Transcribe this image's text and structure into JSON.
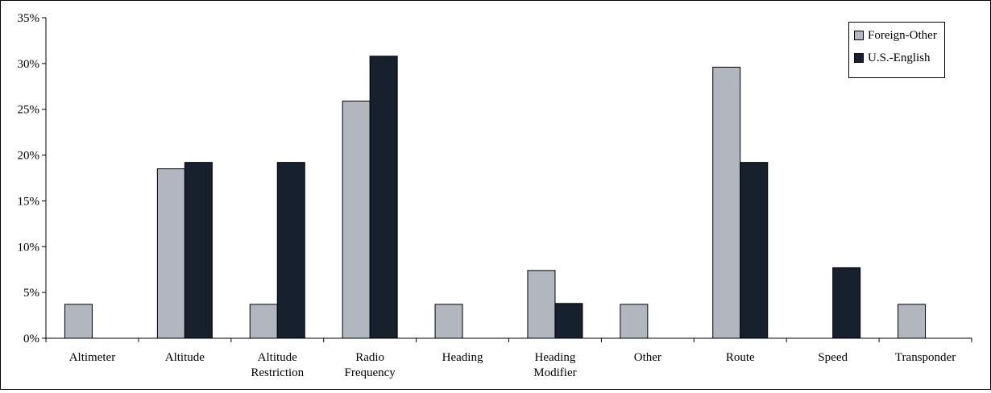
{
  "chart_data": {
    "type": "bar",
    "categories": [
      [
        "Altimeter"
      ],
      [
        "Altitude"
      ],
      [
        "Altitude",
        "Restriction"
      ],
      [
        "Radio",
        "Frequency"
      ],
      [
        "Heading"
      ],
      [
        "Heading",
        "Modifier"
      ],
      [
        "Other"
      ],
      [
        "Route"
      ],
      [
        "Speed"
      ],
      [
        "Transponder"
      ]
    ],
    "series": [
      {
        "name": "Foreign-Other",
        "color": "#b2b7bf",
        "values": [
          3.7,
          18.5,
          3.7,
          25.9,
          3.7,
          7.4,
          3.7,
          29.6,
          0,
          3.7
        ]
      },
      {
        "name": "U.S.-English",
        "color": "#17202d",
        "values": [
          0,
          19.2,
          19.2,
          30.8,
          0,
          3.8,
          0,
          19.2,
          7.7,
          0
        ]
      }
    ],
    "yticks": [
      "0%",
      "5%",
      "10%",
      "15%",
      "20%",
      "25%",
      "30%",
      "35%"
    ],
    "ylim": [
      0,
      35
    ],
    "grid": false,
    "legend": "top-right",
    "title": "",
    "xlabel": "",
    "ylabel": ""
  }
}
